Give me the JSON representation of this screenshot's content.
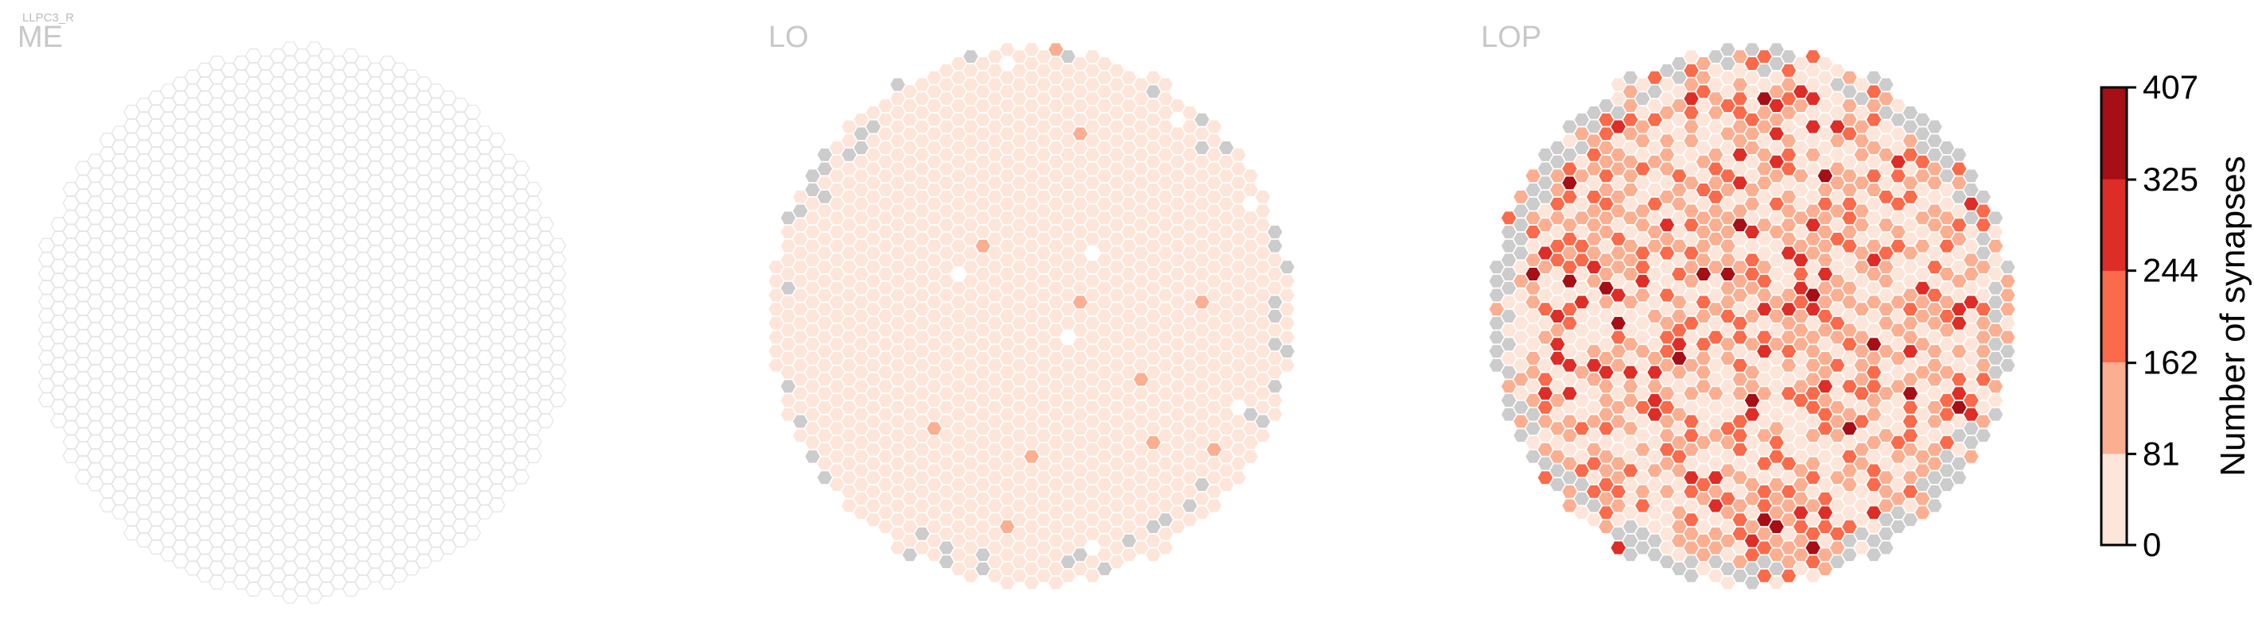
{
  "cell_type": "LLPC3_R",
  "panels": [
    {
      "id": "me",
      "label": "ME"
    },
    {
      "id": "lo",
      "label": "LO"
    },
    {
      "id": "lop",
      "label": "LOP"
    }
  ],
  "colors": {
    "no_data": "#cccccc",
    "hex_outline_empty": "#e4e4e4",
    "hex_stroke": "#ffffff",
    "bins": [
      "#fee5d9",
      "#fcae91",
      "#fb6a4a",
      "#de2d26",
      "#a50f15"
    ]
  },
  "chart_data": {
    "type": "heatmap",
    "subtype": "hexagonal column map",
    "panels": [
      "ME",
      "LO",
      "LOP"
    ],
    "colorbar": {
      "label": "Number of synapses",
      "ticks": [
        0,
        81,
        162,
        244,
        325,
        407
      ],
      "range": [
        0,
        407
      ],
      "bins": 5
    },
    "lop_distribution": {
      "bin_0_81": 0.4,
      "bin_81_162": 0.35,
      "bin_162_244": 0.17,
      "bin_244_325": 0.06,
      "bin_325_407": 0.02
    },
    "lo_distribution": {
      "bin_0_81": 0.99,
      "bin_81_162": 0.01
    }
  }
}
